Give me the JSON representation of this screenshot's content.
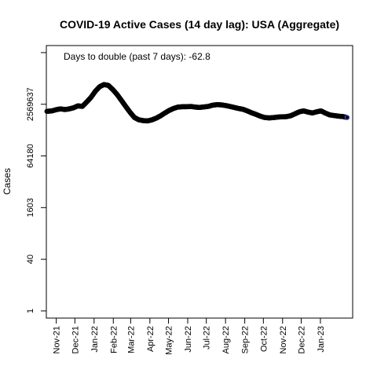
{
  "chart_data": {
    "type": "scatter",
    "title": "COVID-19 Active Cases (14 day lag): USA (Aggregate)",
    "xlabel": "",
    "ylabel": "Cases",
    "y_scale": "log",
    "annotation": "Days to double (past 7 days): -62.8",
    "x_tick_labels": [
      "Nov-21",
      "Dec-21",
      "Jan-22",
      "Feb-22",
      "Mar-22",
      "Apr-22",
      "May-22",
      "Jun-22",
      "Jul-22",
      "Aug-22",
      "Sep-22",
      "Oct-22",
      "Nov-22",
      "Dec-22",
      "Jan-23"
    ],
    "y_ticks": [
      {
        "value": 1,
        "label": "1"
      },
      {
        "value": 40,
        "label": "40"
      },
      {
        "value": 1603,
        "label": "1603"
      },
      {
        "value": 64180,
        "label": "64180"
      },
      {
        "value": 2569637,
        "label": "2569637"
      },
      {
        "value": 102880000,
        "label": ""
      }
    ],
    "xlim": [
      "2021-10-16",
      "2023-02-22"
    ],
    "ylim": [
      0.6,
      170000000
    ],
    "grid": false,
    "legend": "none",
    "marker_color": "#000000",
    "last_marker_color": "#3b4cc0",
    "series": [
      {
        "x": [
          "2021-10-17",
          "2021-10-25",
          "2021-11-01",
          "2021-11-08",
          "2021-11-15",
          "2021-11-22",
          "2021-11-29",
          "2021-12-06",
          "2021-12-13",
          "2021-12-20",
          "2021-12-27",
          "2022-01-03",
          "2022-01-10",
          "2022-01-17",
          "2022-01-24",
          "2022-01-31",
          "2022-02-07",
          "2022-02-14",
          "2022-02-21",
          "2022-02-28",
          "2022-03-07",
          "2022-03-14",
          "2022-03-21",
          "2022-03-28",
          "2022-04-04",
          "2022-04-11",
          "2022-04-18",
          "2022-04-25",
          "2022-05-02",
          "2022-05-09",
          "2022-05-16",
          "2022-05-23",
          "2022-05-30",
          "2022-06-06",
          "2022-06-13",
          "2022-06-20",
          "2022-06-27",
          "2022-07-04",
          "2022-07-11",
          "2022-07-18",
          "2022-07-25",
          "2022-08-01",
          "2022-08-08",
          "2022-08-15",
          "2022-08-22",
          "2022-08-29",
          "2022-09-05",
          "2022-09-12",
          "2022-09-19",
          "2022-09-26",
          "2022-10-03",
          "2022-10-10",
          "2022-10-17",
          "2022-10-24",
          "2022-10-31",
          "2022-11-07",
          "2022-11-14",
          "2022-11-21",
          "2022-11-28",
          "2022-12-05",
          "2022-12-12",
          "2022-12-19",
          "2022-12-26",
          "2023-01-02",
          "2023-01-09",
          "2023-01-16",
          "2023-01-23",
          "2023-01-30",
          "2023-02-06",
          "2023-02-13"
        ],
        "y": [
          1550000,
          1600000,
          1750000,
          1850000,
          1760000,
          1850000,
          2000000,
          2300000,
          2200000,
          3000000,
          4200000,
          6500000,
          9000000,
          10500000,
          9900000,
          7400000,
          5200000,
          3400000,
          2200000,
          1450000,
          1000000,
          850000,
          800000,
          780000,
          840000,
          950000,
          1120000,
          1370000,
          1650000,
          1900000,
          2100000,
          2150000,
          2150000,
          2200000,
          2100000,
          2050000,
          2120000,
          2200000,
          2400000,
          2500000,
          2460000,
          2350000,
          2200000,
          2050000,
          1900000,
          1800000,
          1600000,
          1400000,
          1250000,
          1100000,
          1000000,
          970000,
          990000,
          1030000,
          1050000,
          1060000,
          1130000,
          1300000,
          1500000,
          1600000,
          1470000,
          1380000,
          1500000,
          1600000,
          1370000,
          1200000,
          1150000,
          1100000,
          1070000,
          1000000
        ]
      }
    ]
  }
}
